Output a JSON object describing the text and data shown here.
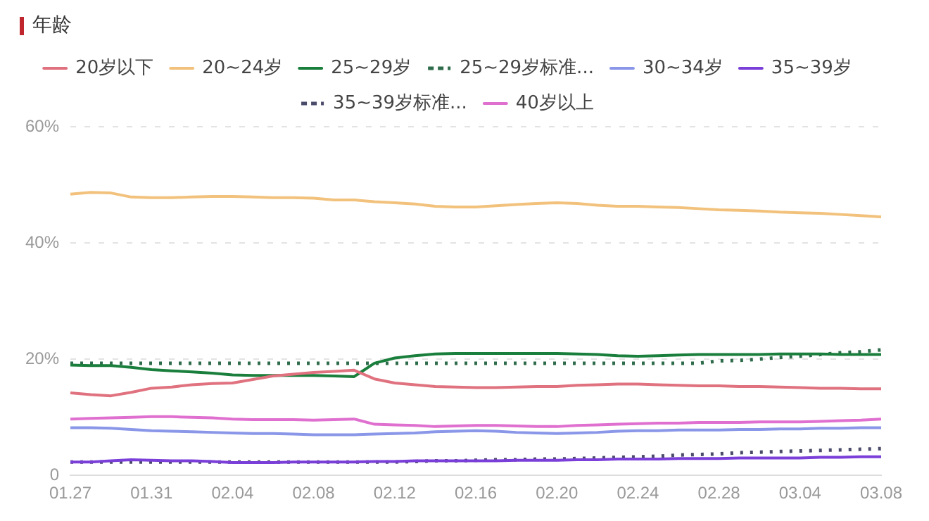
{
  "chart_data": {
    "type": "line",
    "title": "年龄",
    "categories": [
      "01.27",
      null,
      null,
      null,
      "01.31",
      null,
      null,
      null,
      "02.04",
      null,
      null,
      null,
      "02.08",
      null,
      null,
      null,
      "02.12",
      null,
      null,
      null,
      "02.16",
      null,
      null,
      null,
      "02.20",
      null,
      null,
      null,
      "02.24",
      null,
      null,
      null,
      "02.28",
      null,
      null,
      null,
      "03.04",
      null,
      null,
      null,
      "03.08"
    ],
    "series": [
      {
        "name": "20岁以下",
        "color": "#e0727f",
        "values": [
          14.2,
          13.9,
          13.7,
          14.3,
          15.0,
          15.2,
          15.6,
          15.8,
          15.9,
          16.5,
          17.1,
          17.4,
          17.7,
          17.9,
          18.1,
          16.6,
          15.9,
          15.6,
          15.3,
          15.2,
          15.1,
          15.1,
          15.2,
          15.3,
          15.3,
          15.5,
          15.6,
          15.7,
          15.7,
          15.6,
          15.5,
          15.4,
          15.4,
          15.3,
          15.3,
          15.2,
          15.1,
          15.0,
          15.0,
          14.9,
          14.9
        ]
      },
      {
        "name": "20~24岁",
        "color": "#f2c27d",
        "values": [
          48.4,
          48.7,
          48.6,
          47.9,
          47.8,
          47.8,
          47.9,
          48.0,
          48.0,
          47.9,
          47.8,
          47.8,
          47.7,
          47.4,
          47.4,
          47.1,
          46.9,
          46.7,
          46.3,
          46.2,
          46.2,
          46.4,
          46.6,
          46.8,
          46.9,
          46.8,
          46.5,
          46.3,
          46.3,
          46.2,
          46.1,
          45.9,
          45.7,
          45.6,
          45.5,
          45.3,
          45.2,
          45.1,
          44.9,
          44.7,
          44.5
        ]
      },
      {
        "name": "25~29岁",
        "color": "#1a7f3c",
        "values": [
          19.0,
          18.9,
          18.9,
          18.6,
          18.2,
          18.0,
          17.8,
          17.6,
          17.3,
          17.2,
          17.2,
          17.2,
          17.2,
          17.1,
          17.0,
          19.3,
          20.2,
          20.6,
          20.9,
          21.0,
          21.0,
          21.0,
          21.0,
          21.0,
          21.0,
          20.9,
          20.8,
          20.6,
          20.5,
          20.6,
          20.7,
          20.8,
          20.8,
          20.8,
          20.8,
          20.9,
          20.9,
          20.9,
          20.8,
          20.8,
          20.8
        ]
      },
      {
        "name": "25~29岁标准...",
        "color": "#2e6b4a",
        "line_style": "dotted",
        "values": [
          19.3,
          19.3,
          19.3,
          19.3,
          19.3,
          19.3,
          19.3,
          19.3,
          19.3,
          19.3,
          19.3,
          19.3,
          19.3,
          19.3,
          19.3,
          19.3,
          19.3,
          19.3,
          19.3,
          19.3,
          19.3,
          19.3,
          19.3,
          19.3,
          19.3,
          19.3,
          19.3,
          19.3,
          19.3,
          19.3,
          19.3,
          19.3,
          19.7,
          19.8,
          20.0,
          20.3,
          20.5,
          20.8,
          21.1,
          21.3,
          21.6
        ]
      },
      {
        "name": "30~34岁",
        "color": "#8a97e8",
        "values": [
          8.2,
          8.2,
          8.1,
          7.9,
          7.7,
          7.6,
          7.5,
          7.4,
          7.3,
          7.2,
          7.2,
          7.1,
          7.0,
          7.0,
          7.0,
          7.1,
          7.2,
          7.3,
          7.5,
          7.6,
          7.7,
          7.6,
          7.4,
          7.3,
          7.2,
          7.3,
          7.4,
          7.6,
          7.7,
          7.7,
          7.8,
          7.8,
          7.8,
          7.9,
          7.9,
          8.0,
          8.0,
          8.1,
          8.1,
          8.2,
          8.2
        ]
      },
      {
        "name": "35~39岁",
        "color": "#7b3fd9",
        "values": [
          2.3,
          2.3,
          2.5,
          2.7,
          2.6,
          2.5,
          2.5,
          2.4,
          2.2,
          2.2,
          2.2,
          2.3,
          2.3,
          2.3,
          2.3,
          2.4,
          2.4,
          2.5,
          2.5,
          2.5,
          2.5,
          2.5,
          2.6,
          2.6,
          2.6,
          2.7,
          2.7,
          2.8,
          2.8,
          2.8,
          2.9,
          2.9,
          2.9,
          3.0,
          3.0,
          3.0,
          3.0,
          3.1,
          3.1,
          3.2,
          3.2
        ]
      },
      {
        "name": "35~39岁标准...",
        "color": "#4a4a6a",
        "line_style": "dotted",
        "values": [
          2.3,
          2.3,
          2.3,
          2.3,
          2.3,
          2.3,
          2.3,
          2.3,
          2.3,
          2.3,
          2.3,
          2.3,
          2.3,
          2.3,
          2.3,
          2.3,
          2.3,
          2.4,
          2.5,
          2.5,
          2.6,
          2.7,
          2.7,
          2.8,
          2.8,
          2.9,
          3.0,
          3.1,
          3.2,
          3.3,
          3.5,
          3.6,
          3.7,
          3.9,
          4.0,
          4.1,
          4.2,
          4.3,
          4.4,
          4.5,
          4.6
        ]
      },
      {
        "name": "40岁以上",
        "color": "#e070d0",
        "values": [
          9.7,
          9.8,
          9.9,
          10.0,
          10.1,
          10.1,
          10.0,
          9.9,
          9.7,
          9.6,
          9.6,
          9.6,
          9.5,
          9.6,
          9.7,
          8.8,
          8.7,
          8.6,
          8.4,
          8.5,
          8.6,
          8.6,
          8.5,
          8.4,
          8.4,
          8.6,
          8.7,
          8.8,
          8.9,
          9.0,
          9.0,
          9.1,
          9.1,
          9.1,
          9.2,
          9.2,
          9.2,
          9.3,
          9.4,
          9.5,
          9.7
        ]
      }
    ],
    "ylim": [
      0,
      60
    ],
    "yticks": [
      0,
      {
        "value": 20,
        "label": "20%"
      },
      {
        "value": 40,
        "label": "40%"
      },
      {
        "value": 60,
        "label": "60%"
      }
    ],
    "grid": "y",
    "legend": "top",
    "marker": "none"
  }
}
